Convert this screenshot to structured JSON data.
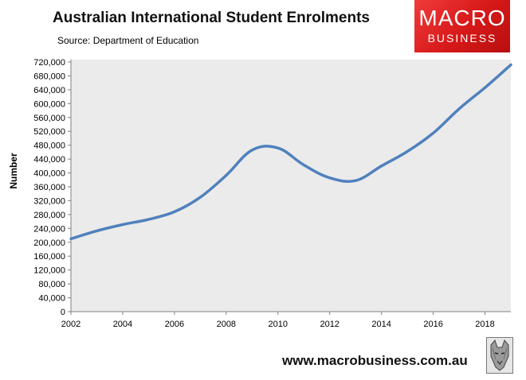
{
  "header": {
    "title": "Australian International Student Enrolments",
    "source": "Source: Department of Education"
  },
  "logo": {
    "line1": "MACRO",
    "line2": "BUSINESS"
  },
  "footer": {
    "website": "www.macrobusiness.com.au",
    "mascot_icon": "wolf-icon"
  },
  "colors": {
    "line": "#4f81bd",
    "axis": "#808080",
    "logo_red": "#e02020"
  },
  "chart_data": {
    "type": "line",
    "title": "Australian International Student Enrolments",
    "subtitle": "Source: Department of Education",
    "ylabel": "Number",
    "xlabel": "",
    "xlim": [
      2002,
      2019
    ],
    "ylim": [
      0,
      720000
    ],
    "y_ticks": [
      0,
      40000,
      80000,
      120000,
      160000,
      200000,
      240000,
      280000,
      320000,
      360000,
      400000,
      440000,
      480000,
      520000,
      560000,
      600000,
      640000,
      680000,
      720000
    ],
    "y_tick_labels": [
      "0",
      "40,000",
      "80,000",
      "120,000",
      "160,000",
      "200,000",
      "240,000",
      "280,000",
      "320,000",
      "360,000",
      "400,000",
      "440,000",
      "480,000",
      "520,000",
      "560,000",
      "600,000",
      "640,000",
      "680,000",
      "720,000"
    ],
    "x_ticks": [
      2002,
      2004,
      2006,
      2008,
      2010,
      2012,
      2014,
      2016,
      2018
    ],
    "x_tick_labels": [
      "2002",
      "2004",
      "2006",
      "2008",
      "2010",
      "2012",
      "2014",
      "2016",
      "2018"
    ],
    "grid": false,
    "legend": "none",
    "series": [
      {
        "x": [
          2002,
          2003,
          2004,
          2005,
          2006,
          2007,
          2008,
          2009,
          2010,
          2011,
          2012,
          2013,
          2014,
          2015,
          2016,
          2017,
          2018,
          2019
        ],
        "values": [
          210000,
          233000,
          251000,
          266000,
          288000,
          330000,
          393000,
          466000,
          472000,
          423000,
          386000,
          378000,
          420000,
          462000,
          515000,
          585000,
          646000,
          712000
        ]
      }
    ]
  }
}
